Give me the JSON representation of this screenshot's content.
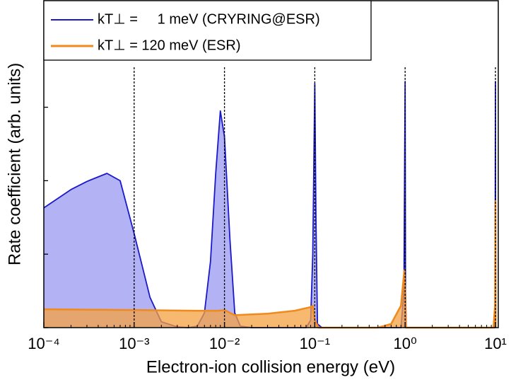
{
  "chart_data": {
    "type": "area",
    "xlabel": "Electron-ion collision energy (eV)",
    "ylabel": "Rate coefficient (arb. units)",
    "xscale": "log",
    "xlim": [
      0.0001,
      10.75
    ],
    "xticks": [
      {
        "value": 0.0001,
        "label": "10⁻⁴"
      },
      {
        "value": 0.001,
        "label": "10⁻³"
      },
      {
        "value": 0.01,
        "label": "10⁻²"
      },
      {
        "value": 0.1,
        "label": "10⁻¹"
      },
      {
        "value": 1,
        "label": "10⁰"
      },
      {
        "value": 10,
        "label": "10¹"
      }
    ],
    "ylim": [
      0,
      4.45
    ],
    "yticks": [
      0,
      1,
      2,
      3,
      4
    ],
    "vlines": [
      0.001,
      0.01,
      0.1,
      1,
      10
    ],
    "legend": "upper left",
    "series": [
      {
        "name": "kT⊥ =     1 meV (CRYRING@ESR)",
        "color": "#1a1ac8",
        "fill": "#aaaaf4",
        "x": [
          0.0001,
          0.0002,
          0.0003,
          0.0005,
          0.0007,
          0.001,
          0.0015,
          0.002,
          0.003,
          0.004,
          0.005,
          0.006,
          0.007,
          0.008,
          0.009,
          0.01,
          0.0115,
          0.013,
          0.015,
          0.02,
          0.08,
          0.09,
          0.095,
          0.1,
          0.103,
          0.107,
          0.12,
          0.9,
          0.97,
          1,
          1.01,
          1.03,
          9.9,
          10,
          10.05
        ],
        "values": [
          1.63,
          1.88,
          1.99,
          2.1,
          2.0,
          1.28,
          0.41,
          0.08,
          0.01,
          0,
          0.02,
          0.2,
          0.9,
          2.1,
          2.95,
          2.6,
          1.2,
          0.2,
          0.02,
          0,
          0,
          0.1,
          1.0,
          3.32,
          1.5,
          0.05,
          0,
          0,
          0.5,
          3.35,
          0.5,
          0,
          0,
          3.35,
          0
        ]
      },
      {
        "name": "kT⊥ = 120 meV (ESR)",
        "color": "#f08a1c",
        "fill": "#f4a040",
        "x": [
          0.0001,
          0.001,
          0.005,
          0.0085,
          0.01,
          0.013,
          0.03,
          0.06,
          0.09,
          0.095,
          0.1,
          0.11,
          0.5,
          0.7,
          0.9,
          0.98,
          1,
          1.02,
          9.5,
          9.9,
          10,
          10.05
        ],
        "values": [
          0.25,
          0.24,
          0.23,
          0.23,
          0.24,
          0.17,
          0.19,
          0.23,
          0.28,
          0.3,
          0.1,
          0,
          0,
          0.05,
          0.3,
          0.78,
          0.5,
          0,
          0,
          0.3,
          1.72,
          0
        ]
      }
    ]
  }
}
